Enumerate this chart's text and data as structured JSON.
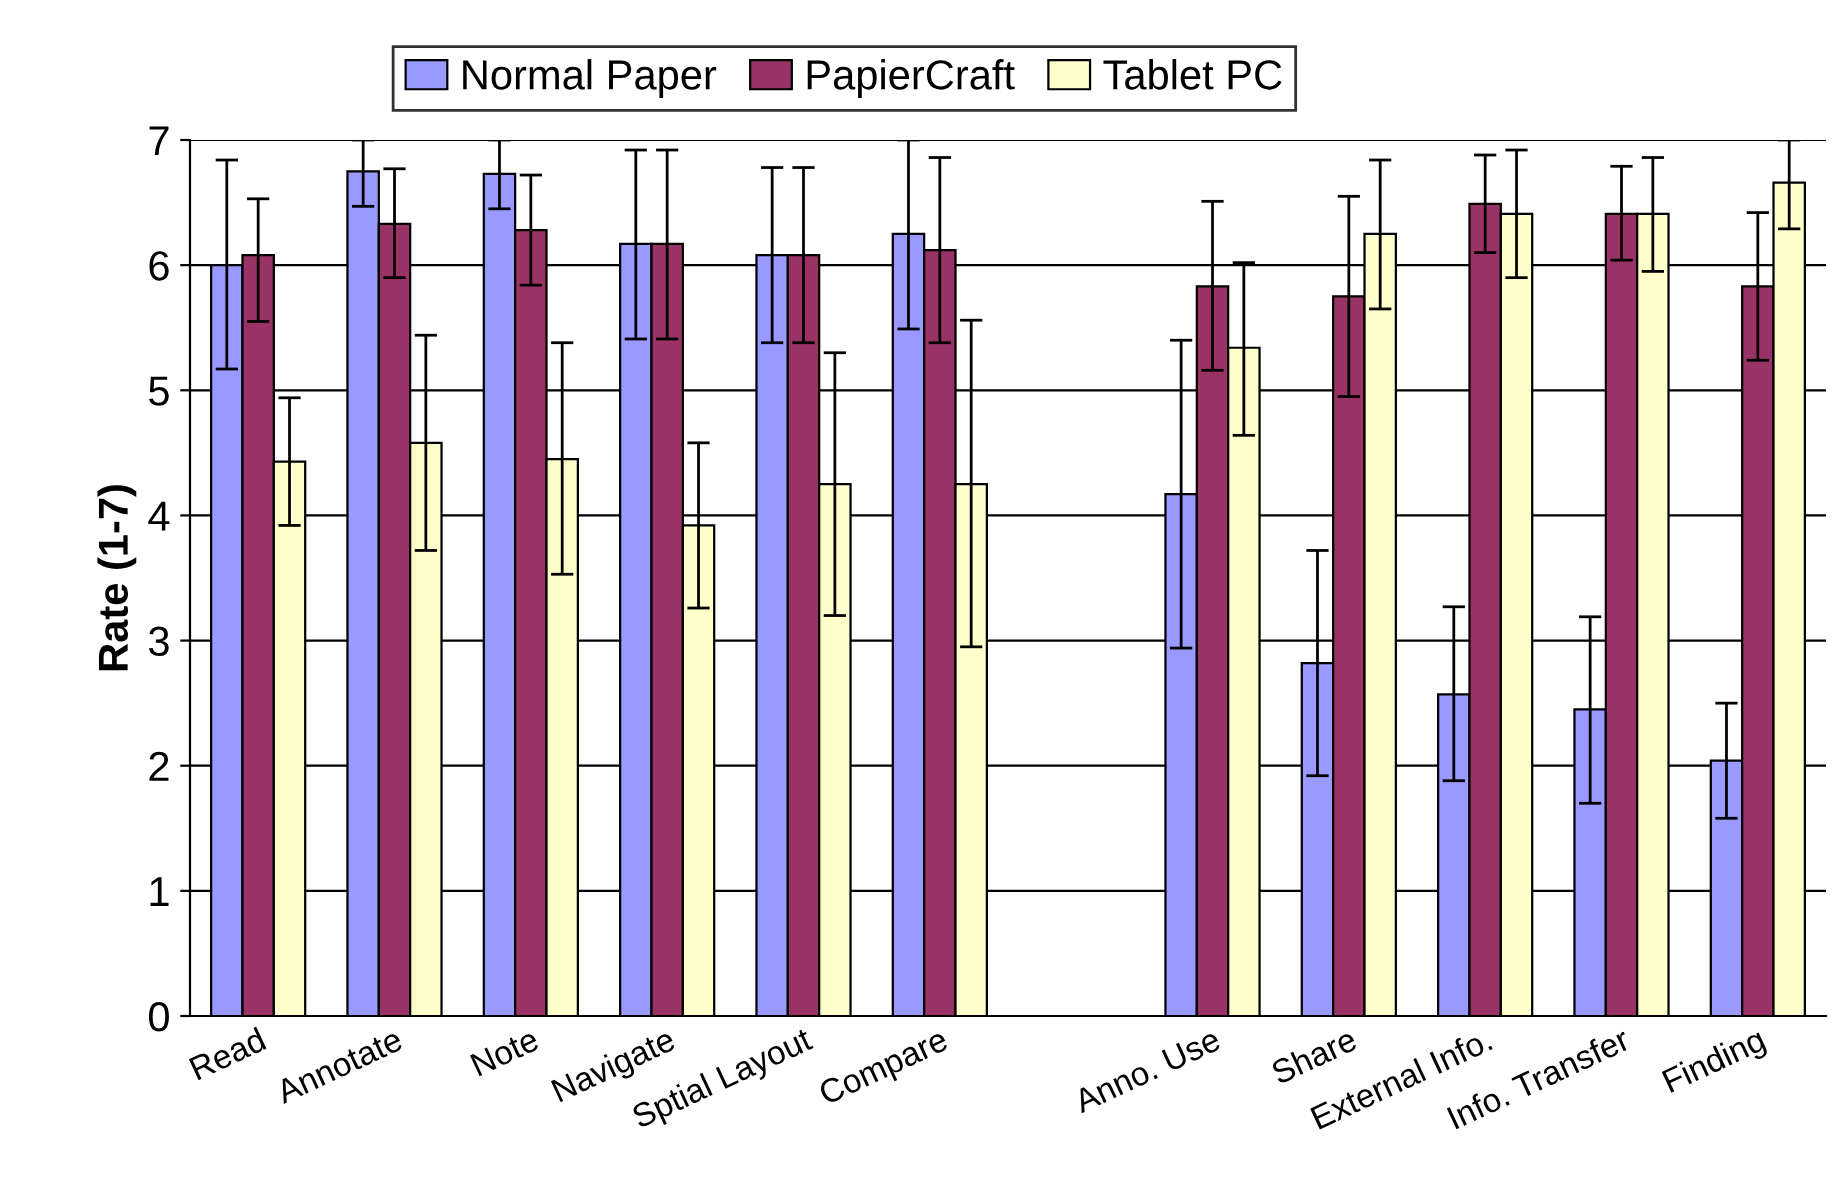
{
  "chart_data": {
    "type": "bar",
    "ylabel": "Rate (1-7)",
    "categories": [
      "Read",
      "Annotate",
      "Note",
      "Navigate",
      "Sptial Layout",
      "Compare",
      null,
      "Anno. Use",
      "Share",
      "External Info.",
      "Info. Transfer",
      "Finding"
    ],
    "series": [
      {
        "name": "Normal Paper",
        "color": "#9999ff",
        "values": [
          6.0,
          6.75,
          6.73,
          6.17,
          6.08,
          6.25,
          null,
          4.17,
          2.82,
          2.57,
          2.45,
          2.04
        ],
        "errors": [
          [
            5.17,
            6.84
          ],
          [
            6.47,
            7.0
          ],
          [
            6.45,
            7.0
          ],
          [
            5.41,
            6.92
          ],
          [
            5.38,
            6.78
          ],
          [
            5.49,
            7.0
          ],
          null,
          [
            2.94,
            5.4
          ],
          [
            1.92,
            3.72
          ],
          [
            1.88,
            3.27
          ],
          [
            1.7,
            3.19
          ],
          [
            1.58,
            2.5
          ]
        ]
      },
      {
        "name": "PapierCraft",
        "color": "#993366",
        "values": [
          6.08,
          6.33,
          6.28,
          6.17,
          6.08,
          6.12,
          null,
          5.83,
          5.75,
          6.49,
          6.41,
          5.83
        ],
        "errors": [
          [
            5.55,
            6.53
          ],
          [
            5.9,
            6.77
          ],
          [
            5.84,
            6.72
          ],
          [
            5.41,
            6.92
          ],
          [
            5.38,
            6.78
          ],
          [
            5.38,
            6.86
          ],
          null,
          [
            5.16,
            6.51
          ],
          [
            4.95,
            6.55
          ],
          [
            6.1,
            6.88
          ],
          [
            6.04,
            6.79
          ],
          [
            5.24,
            6.42
          ]
        ]
      },
      {
        "name": "Tablet PC",
        "color": "#ffffcc",
        "values": [
          4.43,
          4.58,
          4.45,
          3.92,
          4.25,
          4.25,
          null,
          5.34,
          6.25,
          6.41,
          6.41,
          6.66
        ],
        "errors": [
          [
            3.92,
            4.94
          ],
          [
            3.72,
            5.44
          ],
          [
            3.53,
            5.38
          ],
          [
            3.26,
            4.58
          ],
          [
            3.2,
            5.3
          ],
          [
            2.95,
            5.56
          ],
          null,
          [
            4.64,
            6.02
          ],
          [
            5.65,
            6.84
          ],
          [
            5.9,
            6.92
          ],
          [
            5.95,
            6.86
          ],
          [
            6.29,
            7.0
          ]
        ]
      }
    ],
    "ylim": [
      0,
      7
    ],
    "yticks": [
      0,
      1,
      2,
      3,
      4,
      5,
      6,
      7
    ],
    "grid": "y",
    "legend": "top"
  }
}
